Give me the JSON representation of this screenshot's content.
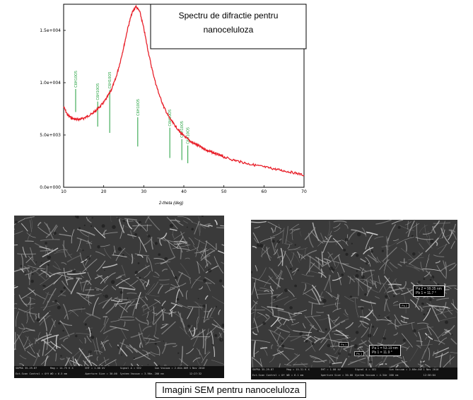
{
  "chart_data": {
    "type": "line",
    "title": "Spectru de difractie pentru nanoceluloza",
    "title_lines": [
      "Spectru de difractie pentru",
      "nanoceluloza"
    ],
    "xlabel": "2-theta (deg)",
    "ylabel": "",
    "xlim": [
      10,
      70
    ],
    "ylim": [
      0,
      17500
    ],
    "x_ticks": [
      10,
      20,
      30,
      40,
      50,
      60,
      70
    ],
    "y_ticks": [
      {
        "value": 0,
        "label": "0.0e+000"
      },
      {
        "value": 5000,
        "label": "5.0e+003"
      },
      {
        "value": 10000,
        "label": "1.0e+004"
      },
      {
        "value": 15000,
        "label": "1.5e+004"
      }
    ],
    "grid": false,
    "series": [
      {
        "color": "#e8202a",
        "x": [
          10,
          11,
          12,
          13,
          14,
          15,
          16,
          17,
          18,
          19,
          20,
          21,
          22,
          23,
          24,
          25,
          26,
          27,
          28,
          29,
          30,
          31,
          32,
          33,
          34,
          35,
          36,
          37,
          38,
          39,
          40,
          41,
          42,
          43,
          44,
          45,
          46,
          47,
          48,
          49,
          50,
          52,
          54,
          56,
          58,
          60,
          62,
          64,
          66,
          68,
          70
        ],
        "y": [
          7700,
          6900,
          6600,
          6500,
          6500,
          6600,
          6800,
          7000,
          7300,
          7700,
          8100,
          8700,
          9400,
          10400,
          11800,
          13400,
          15200,
          16600,
          17300,
          16800,
          15200,
          13200,
          11400,
          9900,
          8700,
          7700,
          6900,
          6300,
          5800,
          5300,
          4900,
          4600,
          4300,
          4100,
          3900,
          3700,
          3500,
          3350,
          3200,
          3050,
          2900,
          2650,
          2450,
          2250,
          2100,
          1950,
          1800,
          1650,
          1500,
          1350,
          1150
        ]
      }
    ],
    "reference_peaks": [
      {
        "label": "C6H10O5",
        "x": 13.0,
        "y0": 7200,
        "y1": 9400
      },
      {
        "label": "C6H10O5",
        "x": 18.5,
        "y0": 5800,
        "y1": 8200
      },
      {
        "label": "C6H10O5",
        "x": 21.5,
        "y0": 5200,
        "y1": 9300
      },
      {
        "label": "C6H10O5",
        "x": 28.5,
        "y0": 3900,
        "y1": 6700
      },
      {
        "label": "C6H10O5",
        "x": 36.5,
        "y0": 2800,
        "y1": 5700
      },
      {
        "label": "C6H10O5",
        "x": 39.5,
        "y0": 2600,
        "y1": 4600
      },
      {
        "label": "C6H10O5",
        "x": 41.0,
        "y0": 2300,
        "y1": 4000
      }
    ],
    "peak_color": "#1e9e3a"
  },
  "sem_left": {
    "info": [
      "EHT = 1.00 kV",
      "Signal A = SE2",
      "Gun Vacuum = 2.64e-009 mbar",
      "1 Nov 2010",
      "SUPRA 35-29-87",
      "Mag = 14.75 K X",
      "WD = 6.5 mm",
      "Aperture Size = 30.00 µm",
      "System Vacuum = 3.96e-006 mbar",
      "12:27:32",
      "Ext.Scan Control = Off",
      "200 nm"
    ]
  },
  "sem_right": {
    "info": [
      "EHT = 1.00 kV",
      "Signal A = SE2",
      "Gun Vacuum = 2.66e-009 mbar",
      "1 Nov 2010",
      "SUPRA 35-29-87",
      "Mag = 15.31 K X",
      "WD = 6.1 mm",
      "Aperture Size = 30.00 µm",
      "System Vacuum = 4.34e-006 mbar",
      "12:36:04",
      "Ext.Scan Control = Off",
      "200 nm"
    ],
    "measure_1": {
      "line1": "Pa 2 = 99.35 nm",
      "line2": "Pb 1 = 11.7 °"
    },
    "measure_2": {
      "line1": "Pa 1 = 53.19 nm",
      "line2": "Pb 1 = 11.9 °"
    },
    "tag_a": "Pa 2",
    "tag_b": "Pa 1",
    "tag_c": "Pb 1"
  },
  "caption": "Imagini SEM pentru nanoceluloza"
}
